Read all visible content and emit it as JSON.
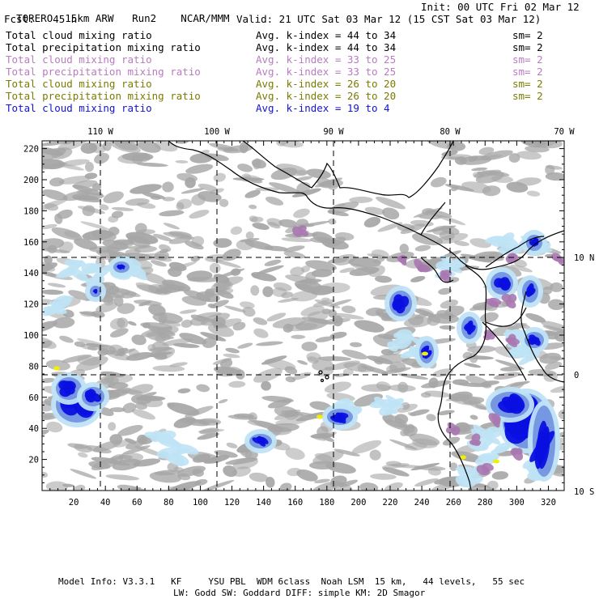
{
  "header": {
    "model_name": "TORERO",
    "resolution": "15km ARW",
    "run": "Run2",
    "org": "NCAR/MMM",
    "init": "Init: 00 UTC Fri 02 Mar 12",
    "fcst_label": "Fcst:",
    "fcst_value": "45 h",
    "valid": "Valid: 21 UTC Sat 03 Mar 12 (15 CST Sat 03 Mar 12)"
  },
  "legend": [
    {
      "field": "Total cloud mixing ratio",
      "kindex": "Avg. k-index = 44 to 34",
      "sm": "sm= 2",
      "color": "#000000"
    },
    {
      "field": "Total precipitation mixing ratio",
      "kindex": "Avg. k-index = 44 to 34",
      "sm": "sm= 2",
      "color": "#000000"
    },
    {
      "field": "Total cloud mixing ratio",
      "kindex": "Avg. k-index = 33 to 25",
      "sm": "sm= 2",
      "color": "#b87cc0"
    },
    {
      "field": "Total precipitation mixing ratio",
      "kindex": "Avg. k-index = 33 to 25",
      "sm": "sm= 2",
      "color": "#b87cc0"
    },
    {
      "field": "Total cloud mixing ratio",
      "kindex": "Avg. k-index = 26 to 20",
      "sm": "sm= 2",
      "color": "#7b7b00"
    },
    {
      "field": "Total precipitation mixing ratio",
      "kindex": "Avg. k-index = 26 to 20",
      "sm": "sm= 2",
      "color": "#7b7b00"
    },
    {
      "field": "Total cloud mixing ratio",
      "kindex": "Avg. k-index = 19 to 4",
      "sm": "",
      "color": "#1414cc"
    }
  ],
  "map": {
    "lon_labels": [
      "110 W",
      "100 W",
      "90 W",
      "80 W",
      "70 W"
    ],
    "lat_labels": [
      "10 N",
      "0",
      "10 S"
    ],
    "x_ticks": [
      "20",
      "40",
      "60",
      "80",
      "100",
      "120",
      "140",
      "160",
      "180",
      "200",
      "220",
      "240",
      "260",
      "280",
      "300",
      "320"
    ],
    "y_ticks": [
      "220",
      "200",
      "180",
      "160",
      "140",
      "120",
      "100",
      "80",
      "60",
      "40",
      "20"
    ],
    "colors": {
      "cloud_gray": "#a6a6a6",
      "light_blue": "#bfe3f5",
      "mid_blue": "#6f8fe0",
      "deep_blue": "#0a10e0",
      "purple": "#a878b0",
      "yellow": "#f0f000"
    }
  },
  "footer": {
    "line1": "Model Info: V3.3.1   KF     YSU PBL  WDM 6class  Noah LSM  15 km,   44 levels,   55 sec",
    "line2": "LW: Godd SW: Goddard DIFF: simple KM: 2D Smagor"
  }
}
